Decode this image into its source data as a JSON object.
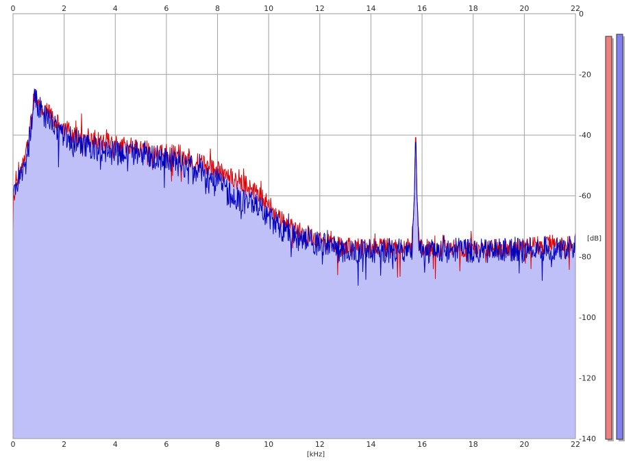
{
  "chart_data": {
    "type": "area",
    "title": "",
    "xlabel": "[kHz]",
    "ylabel": "[dB]",
    "xlim": [
      0,
      22
    ],
    "ylim": [
      -140,
      0
    ],
    "x_ticks": [
      0,
      2,
      4,
      6,
      8,
      10,
      12,
      14,
      16,
      18,
      20,
      22
    ],
    "y_ticks": [
      0,
      -20,
      -40,
      -60,
      -80,
      -100,
      -120,
      -140
    ],
    "grid": true,
    "legend": "none",
    "colors": {
      "background": "#ffffff",
      "grid": "#a0a0a0",
      "frame": "#9a9a9a",
      "fill": "#c0c0f8",
      "series_red": "#e00000",
      "series_blue": "#0000c0",
      "meter_red": "#f08080",
      "meter_blue": "#8080f0",
      "meter_shadow": "#b0b0b0"
    },
    "series": [
      {
        "color": "#e00000",
        "noise": 3.2,
        "points": [
          [
            0.0,
            -64
          ],
          [
            0.1,
            -55
          ],
          [
            0.3,
            -52
          ],
          [
            0.5,
            -47
          ],
          [
            0.7,
            -35
          ],
          [
            0.85,
            -26
          ],
          [
            1.0,
            -29
          ],
          [
            1.3,
            -32
          ],
          [
            1.6,
            -35
          ],
          [
            2.0,
            -38
          ],
          [
            2.5,
            -40
          ],
          [
            3.0,
            -41
          ],
          [
            3.5,
            -42
          ],
          [
            4.0,
            -43
          ],
          [
            4.5,
            -44
          ],
          [
            5.0,
            -44
          ],
          [
            5.5,
            -46
          ],
          [
            6.0,
            -46
          ],
          [
            6.5,
            -46
          ],
          [
            7.0,
            -48
          ],
          [
            7.5,
            -50
          ],
          [
            8.0,
            -51
          ],
          [
            8.5,
            -54
          ],
          [
            9.0,
            -56
          ],
          [
            9.5,
            -59
          ],
          [
            10.0,
            -63
          ],
          [
            10.5,
            -68
          ],
          [
            11.0,
            -71
          ],
          [
            11.5,
            -73
          ],
          [
            12.0,
            -75
          ],
          [
            12.5,
            -76
          ],
          [
            13.0,
            -77
          ],
          [
            14.0,
            -77
          ],
          [
            15.0,
            -77
          ],
          [
            15.6,
            -77
          ],
          [
            15.7,
            -60
          ],
          [
            15.75,
            -36
          ],
          [
            15.8,
            -60
          ],
          [
            15.9,
            -77
          ],
          [
            17.0,
            -77
          ],
          [
            18.0,
            -77
          ],
          [
            19.0,
            -77
          ],
          [
            20.0,
            -77
          ],
          [
            21.0,
            -76
          ],
          [
            22.0,
            -76
          ]
        ]
      },
      {
        "color": "#0000c0",
        "noise": 4.2,
        "points": [
          [
            0.0,
            -62
          ],
          [
            0.1,
            -57
          ],
          [
            0.3,
            -53
          ],
          [
            0.5,
            -49
          ],
          [
            0.7,
            -37
          ],
          [
            0.85,
            -28
          ],
          [
            1.0,
            -31
          ],
          [
            1.3,
            -34
          ],
          [
            1.6,
            -37
          ],
          [
            2.0,
            -40
          ],
          [
            2.5,
            -42
          ],
          [
            3.0,
            -44
          ],
          [
            3.5,
            -45
          ],
          [
            4.0,
            -46
          ],
          [
            4.5,
            -46
          ],
          [
            5.0,
            -46
          ],
          [
            5.5,
            -47
          ],
          [
            6.0,
            -48
          ],
          [
            6.5,
            -49
          ],
          [
            7.0,
            -51
          ],
          [
            7.5,
            -53
          ],
          [
            8.0,
            -55
          ],
          [
            8.5,
            -60
          ],
          [
            9.0,
            -62
          ],
          [
            9.5,
            -63
          ],
          [
            10.0,
            -67
          ],
          [
            10.5,
            -71
          ],
          [
            11.0,
            -73
          ],
          [
            11.5,
            -75
          ],
          [
            12.0,
            -76
          ],
          [
            12.5,
            -77
          ],
          [
            13.0,
            -78
          ],
          [
            14.0,
            -78
          ],
          [
            15.0,
            -78
          ],
          [
            15.6,
            -78
          ],
          [
            15.7,
            -60
          ],
          [
            15.75,
            -38
          ],
          [
            15.8,
            -60
          ],
          [
            15.9,
            -78
          ],
          [
            17.0,
            -78
          ],
          [
            18.0,
            -78
          ],
          [
            19.0,
            -78
          ],
          [
            20.0,
            -78
          ],
          [
            21.0,
            -77
          ],
          [
            22.0,
            -77
          ]
        ]
      }
    ]
  }
}
